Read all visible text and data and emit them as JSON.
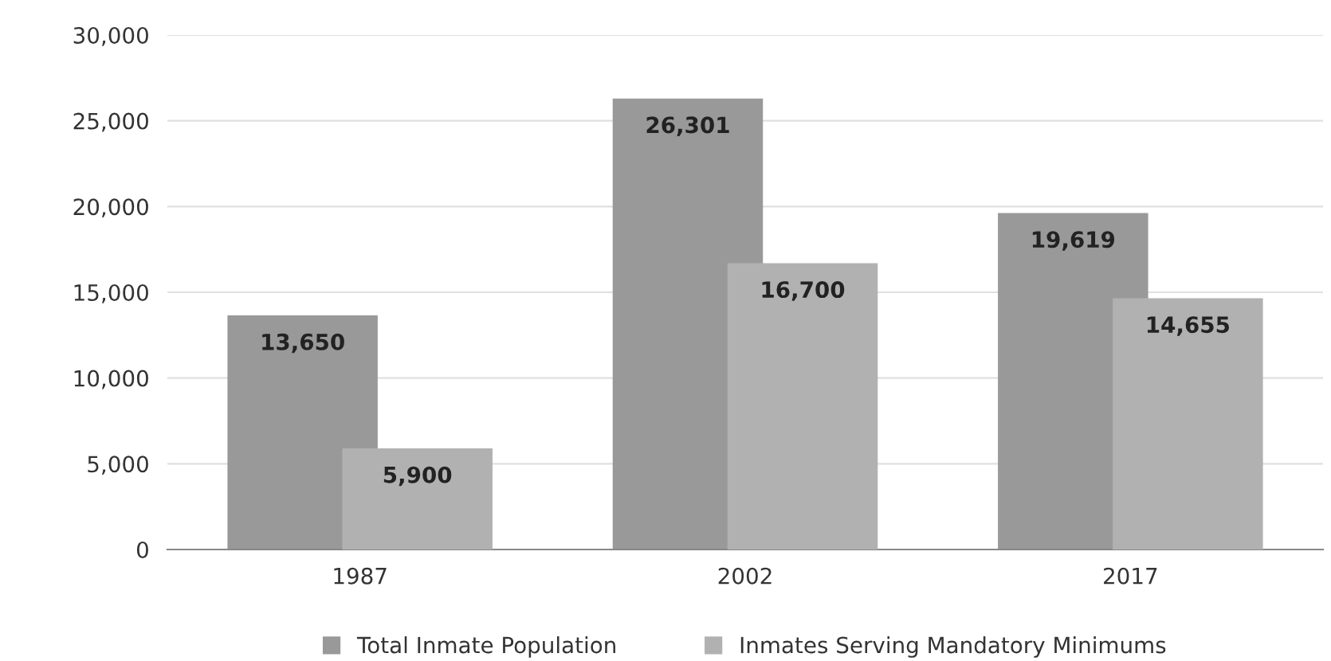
{
  "chart_data": {
    "type": "bar",
    "categories": [
      "1987",
      "2002",
      "2017"
    ],
    "series": [
      {
        "name": "Total Inmate Population",
        "color": "#999999",
        "values": [
          13650,
          26301,
          19619
        ]
      },
      {
        "name": "Inmates Serving Mandatory Minimums",
        "color": "#b1b1b1",
        "values": [
          5900,
          16700,
          14655
        ]
      }
    ],
    "ylim": [
      0,
      30000
    ],
    "yticks": [
      {
        "value": 0,
        "label": "0"
      },
      {
        "value": 5000,
        "label": "5,000"
      },
      {
        "value": 10000,
        "label": "10,000"
      },
      {
        "value": 15000,
        "label": "15,000"
      },
      {
        "value": 20000,
        "label": "20,000"
      },
      {
        "value": 25000,
        "label": "25,000"
      },
      {
        "value": 30000,
        "label": "30,000"
      }
    ],
    "grid": "y",
    "legend": "bottom",
    "value_labels": [
      [
        "13,650",
        "26,301",
        "19,619"
      ],
      [
        "5,900",
        "16,700",
        "14,655"
      ]
    ]
  }
}
